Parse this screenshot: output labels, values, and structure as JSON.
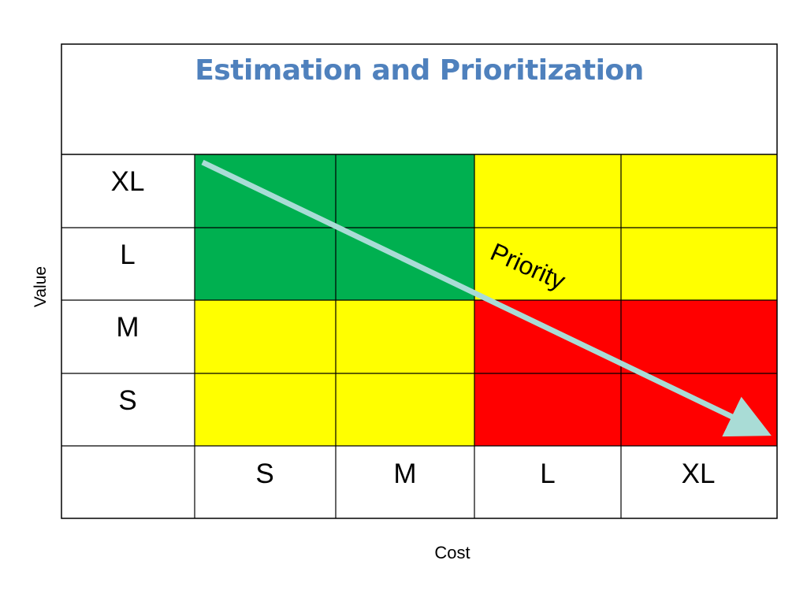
{
  "title": "Estimation and Prioritization",
  "title_color": "#4f81bd",
  "chart_data": {
    "type": "heatmap",
    "title": "Estimation and Prioritization",
    "xlabel": "Cost",
    "ylabel": "Value",
    "x_categories": [
      "S",
      "M",
      "L",
      "XL"
    ],
    "y_categories": [
      "XL",
      "L",
      "M",
      "S"
    ],
    "cells": [
      [
        "green",
        "green",
        "yellow",
        "yellow"
      ],
      [
        "green",
        "green",
        "yellow",
        "yellow"
      ],
      [
        "yellow",
        "yellow",
        "red",
        "red"
      ],
      [
        "yellow",
        "yellow",
        "red",
        "red"
      ]
    ],
    "colors": {
      "green": "#00b050",
      "yellow": "#ffff00",
      "red": "#ff0000"
    },
    "annotation": {
      "text": "Priority",
      "arrow": "from top-left (low cost, high value) to bottom-right (high cost, low value)",
      "arrow_color": "#a9dcd6"
    },
    "grid": true
  }
}
